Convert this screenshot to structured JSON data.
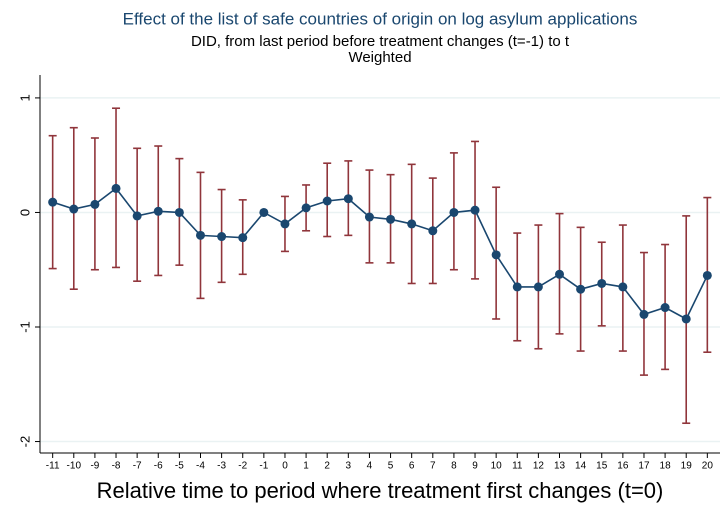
{
  "chart_data": {
    "type": "errorbar-line",
    "title": "Effect of the list of safe countries of origin on log asylum applications",
    "subtitle": "DID, from last period before treatment changes (t=-1) to t",
    "subtitle2": "Weighted",
    "x_label": "Relative time to period where treatment first changes (t=0)",
    "x": [
      -11,
      -10,
      -9,
      -8,
      -7,
      -6,
      -5,
      -4,
      -3,
      -2,
      -1,
      0,
      1,
      2,
      3,
      4,
      5,
      6,
      7,
      8,
      9,
      10,
      11,
      12,
      13,
      14,
      15,
      16,
      17,
      18,
      19,
      20
    ],
    "values": [
      0.09,
      0.03,
      0.07,
      0.21,
      -0.03,
      0.01,
      0.0,
      -0.2,
      -0.21,
      -0.22,
      0.0,
      -0.1,
      0.04,
      0.1,
      0.12,
      -0.04,
      -0.06,
      -0.1,
      -0.16,
      0.0,
      0.02,
      -0.37,
      -0.65,
      -0.65,
      -0.54,
      -0.67,
      -0.62,
      -0.65,
      -0.89,
      -0.83,
      -0.93,
      -0.55
    ],
    "ci_upper": [
      0.67,
      0.74,
      0.65,
      0.91,
      0.56,
      0.58,
      0.47,
      0.35,
      0.2,
      0.11,
      null,
      0.14,
      0.24,
      0.43,
      0.45,
      0.37,
      0.33,
      0.42,
      0.3,
      0.52,
      0.62,
      0.22,
      -0.18,
      -0.11,
      -0.01,
      -0.13,
      -0.26,
      -0.11,
      -0.35,
      -0.28,
      -0.03,
      0.13
    ],
    "ci_lower": [
      -0.49,
      -0.67,
      -0.5,
      -0.48,
      -0.6,
      -0.55,
      -0.46,
      -0.75,
      -0.61,
      -0.54,
      null,
      -0.34,
      -0.16,
      -0.21,
      -0.2,
      -0.44,
      -0.44,
      -0.62,
      -0.62,
      -0.5,
      -0.58,
      -0.93,
      -1.12,
      -1.19,
      -1.06,
      -1.21,
      -0.99,
      -1.21,
      -1.42,
      -1.37,
      -1.84,
      -1.22
    ],
    "color": "#1a476f",
    "ci_color": "#90353b",
    "xlim": [
      -11.6,
      20.6
    ],
    "ylim": [
      -2.1,
      1.2
    ],
    "xticks": [
      -11,
      -10,
      -9,
      -8,
      -7,
      -6,
      -5,
      -4,
      -3,
      -2,
      -1,
      0,
      1,
      2,
      3,
      4,
      5,
      6,
      7,
      8,
      9,
      10,
      11,
      12,
      13,
      14,
      15,
      16,
      17,
      18,
      19,
      20
    ],
    "yticks": [
      1,
      0,
      -1,
      -2
    ],
    "grid": true
  }
}
